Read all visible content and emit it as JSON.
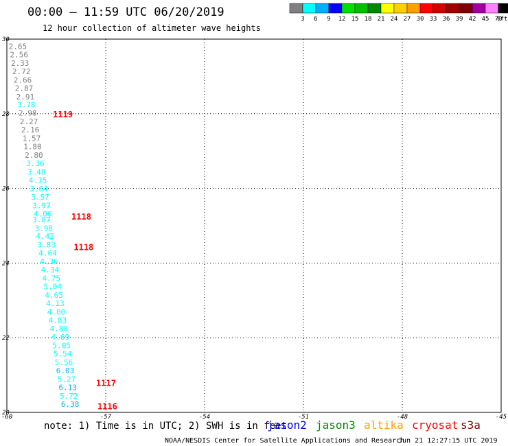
{
  "header": {
    "title": "00:00 – 11:59 UTC 06/20/2019",
    "subtitle": "12 hour collection of altimeter wave heights"
  },
  "legend": {
    "unit": "(ft)",
    "bins": [
      {
        "label": "",
        "color": "#808080"
      },
      {
        "label": "3",
        "color": "#00ffff"
      },
      {
        "label": "6",
        "color": "#00b0ff"
      },
      {
        "label": "9",
        "color": "#0000ff"
      },
      {
        "label": "12",
        "color": "#00e000"
      },
      {
        "label": "15",
        "color": "#00c000"
      },
      {
        "label": "18",
        "color": "#008800"
      },
      {
        "label": "21",
        "color": "#ffff00"
      },
      {
        "label": "24",
        "color": "#ffd000"
      },
      {
        "label": "27",
        "color": "#ffa000"
      },
      {
        "label": "30",
        "color": "#ff0000"
      },
      {
        "label": "33",
        "color": "#d00000"
      },
      {
        "label": "36",
        "color": "#a00000"
      },
      {
        "label": "39",
        "color": "#800000"
      },
      {
        "label": "42",
        "color": "#a000a0"
      },
      {
        "label": "45",
        "color": "#ff80ff"
      },
      {
        "label": "70",
        "color": "#000000"
      }
    ]
  },
  "map": {
    "lon_range": [
      -60,
      -45
    ],
    "lat_range": [
      20,
      30
    ],
    "lon_ticks": [
      "-60",
      "-57",
      "-54",
      "-51",
      "-48",
      "-45"
    ],
    "lat_ticks": [
      "20",
      "22",
      "24",
      "26",
      "28",
      "30"
    ],
    "observations": [
      {
        "lon": -59.67,
        "lat": 29.81,
        "value": "2.65",
        "color": "#808080"
      },
      {
        "lon": -59.63,
        "lat": 29.59,
        "value": "2.56",
        "color": "#808080"
      },
      {
        "lon": -59.6,
        "lat": 29.36,
        "value": "2.33",
        "color": "#808080"
      },
      {
        "lon": -59.56,
        "lat": 29.14,
        "value": "2.72",
        "color": "#808080"
      },
      {
        "lon": -59.52,
        "lat": 28.91,
        "value": "2.66",
        "color": "#808080"
      },
      {
        "lon": -59.48,
        "lat": 28.69,
        "value": "2.87",
        "color": "#808080"
      },
      {
        "lon": -59.44,
        "lat": 28.46,
        "value": "2.91",
        "color": "#808080"
      },
      {
        "lon": -59.41,
        "lat": 28.24,
        "value": "3.78",
        "color": "#00ffff"
      },
      {
        "lon": -59.37,
        "lat": 28.02,
        "value": "2.98",
        "color": "#808080"
      },
      {
        "lon": -59.33,
        "lat": 27.79,
        "value": "2.27",
        "color": "#808080"
      },
      {
        "lon": -59.29,
        "lat": 27.57,
        "value": "2.16",
        "color": "#808080"
      },
      {
        "lon": -59.25,
        "lat": 27.34,
        "value": "1.57",
        "color": "#808080"
      },
      {
        "lon": -59.22,
        "lat": 27.12,
        "value": "1.80",
        "color": "#808080"
      },
      {
        "lon": -59.18,
        "lat": 26.89,
        "value": "2.80",
        "color": "#808080"
      },
      {
        "lon": -59.14,
        "lat": 26.67,
        "value": "3.36",
        "color": "#00ffff"
      },
      {
        "lon": -59.1,
        "lat": 26.44,
        "value": "3.48",
        "color": "#00ffff"
      },
      {
        "lon": -59.06,
        "lat": 26.22,
        "value": "4.15",
        "color": "#00ffff"
      },
      {
        "lon": -59.03,
        "lat": 25.99,
        "value": "3.64",
        "color": "#00ffff"
      },
      {
        "lon": -58.99,
        "lat": 25.77,
        "value": "3.57",
        "color": "#00ffff"
      },
      {
        "lon": -58.95,
        "lat": 25.54,
        "value": "3.97",
        "color": "#00ffff"
      },
      {
        "lon": -58.91,
        "lat": 25.32,
        "value": "4.06",
        "color": "#00ffff"
      },
      {
        "lon": -58.95,
        "lat": 25.17,
        "value": "3.87",
        "color": "#00ffff"
      },
      {
        "lon": -58.88,
        "lat": 24.94,
        "value": "3.98",
        "color": "#00ffff"
      },
      {
        "lon": -58.84,
        "lat": 24.72,
        "value": "4.42",
        "color": "#00ffff"
      },
      {
        "lon": -58.8,
        "lat": 24.49,
        "value": "3.83",
        "color": "#00ffff"
      },
      {
        "lon": -58.76,
        "lat": 24.27,
        "value": "4.64",
        "color": "#00ffff"
      },
      {
        "lon": -58.72,
        "lat": 24.04,
        "value": "4.36",
        "color": "#00ffff"
      },
      {
        "lon": -58.69,
        "lat": 23.82,
        "value": "4.34",
        "color": "#00ffff"
      },
      {
        "lon": -58.65,
        "lat": 23.59,
        "value": "4.75",
        "color": "#00ffff"
      },
      {
        "lon": -58.61,
        "lat": 23.37,
        "value": "5.04",
        "color": "#00ffff"
      },
      {
        "lon": -58.57,
        "lat": 23.14,
        "value": "4.65",
        "color": "#00ffff"
      },
      {
        "lon": -58.53,
        "lat": 22.92,
        "value": "4.13",
        "color": "#00ffff"
      },
      {
        "lon": -58.5,
        "lat": 22.69,
        "value": "4.80",
        "color": "#00ffff"
      },
      {
        "lon": -58.46,
        "lat": 22.47,
        "value": "4.83",
        "color": "#00ffff"
      },
      {
        "lon": -58.42,
        "lat": 22.24,
        "value": "4.80",
        "color": "#00ffff"
      },
      {
        "lon": -58.38,
        "lat": 22.02,
        "value": "4.69",
        "color": "#00ffff"
      },
      {
        "lon": -58.34,
        "lat": 21.79,
        "value": "5.05",
        "color": "#00ffff"
      },
      {
        "lon": -58.31,
        "lat": 21.57,
        "value": "5.54",
        "color": "#00ffff"
      },
      {
        "lon": -58.27,
        "lat": 21.34,
        "value": "5.56",
        "color": "#00ffff"
      },
      {
        "lon": -58.23,
        "lat": 21.12,
        "value": "6.03",
        "color": "#00b0ff"
      },
      {
        "lon": -58.19,
        "lat": 20.89,
        "value": "5.27",
        "color": "#00ffff"
      },
      {
        "lon": -58.15,
        "lat": 20.67,
        "value": "6.13",
        "color": "#00b0ff"
      },
      {
        "lon": -58.12,
        "lat": 20.44,
        "value": "5.72",
        "color": "#00ffff"
      },
      {
        "lon": -58.08,
        "lat": 20.22,
        "value": "6.38",
        "color": "#00b0ff"
      }
    ],
    "pass_labels": [
      {
        "lon": -58.3,
        "lat": 27.98,
        "text": "1119"
      },
      {
        "lon": -57.74,
        "lat": 25.24,
        "text": "1118"
      },
      {
        "lon": -57.67,
        "lat": 24.42,
        "text": "1118"
      },
      {
        "lon": -56.99,
        "lat": 20.78,
        "text": "1117"
      },
      {
        "lon": -56.95,
        "lat": 20.16,
        "text": "1116"
      }
    ]
  },
  "footer": {
    "note": "note: 1) Time is in UTC; 2) SWH is in feet",
    "satellites": [
      {
        "name": "jason2",
        "color": "#0000ff"
      },
      {
        "name": "jason3",
        "color": "#008800"
      },
      {
        "name": "altika",
        "color": "#ffa000"
      },
      {
        "name": "cryosat",
        "color": "#ff0000"
      },
      {
        "name": "s3a",
        "color": "#800000"
      }
    ],
    "credit": "NOAA/NESDIS Center for Satellite Applications and Research",
    "timestamp": "Jun 21 12:27:15 UTC 2019"
  }
}
